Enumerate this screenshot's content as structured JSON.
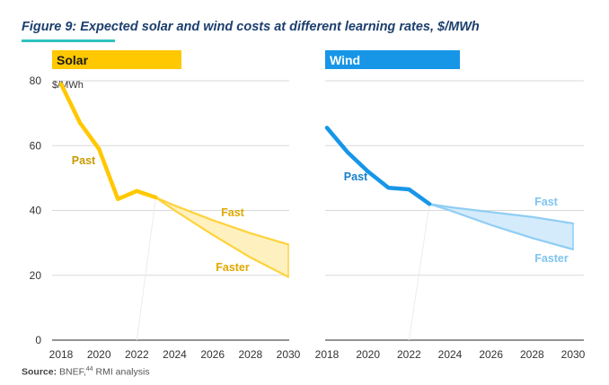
{
  "figure": {
    "title": "Figure 9: Expected solar and wind costs at different learning rates, $/MWh",
    "source_label": "Source:",
    "source_text": "BNEF,",
    "source_ref": "44",
    "source_tail": " RMI analysis"
  },
  "chart_data": [
    {
      "type": "line",
      "panel": "Solar",
      "ylabel": "$/MWh",
      "ylim": [
        0,
        80
      ],
      "yticks": [
        "0",
        "20",
        "40",
        "60",
        "80"
      ],
      "xticks": [
        "2018",
        "2020",
        "2022",
        "2024",
        "2026",
        "2028",
        "2030"
      ],
      "xlim": [
        2018,
        2030
      ],
      "grid": true,
      "colors": {
        "header": "#ffc800",
        "past": "#ffc800",
        "projection": "#ffd23a",
        "band": "#fff1bf",
        "label": "#e0a800"
      },
      "series": [
        {
          "name": "Past",
          "x": [
            2018,
            2019,
            2020,
            2021,
            2022,
            2023
          ],
          "y": [
            79,
            67,
            59,
            43.5,
            46,
            44
          ]
        },
        {
          "name": "Fast",
          "x": [
            2023,
            2024,
            2026,
            2028,
            2030
          ],
          "y": [
            44,
            41.5,
            37,
            33,
            29.5
          ]
        },
        {
          "name": "Faster",
          "x": [
            2023,
            2024,
            2026,
            2028,
            2030
          ],
          "y": [
            44,
            40,
            32.5,
            25.5,
            19.5
          ]
        }
      ]
    },
    {
      "type": "line",
      "panel": "Wind",
      "ylim": [
        0,
        80
      ],
      "xticks": [
        "2018",
        "2020",
        "2022",
        "2024",
        "2026",
        "2028",
        "2030"
      ],
      "xlim": [
        2018,
        2030
      ],
      "grid": true,
      "colors": {
        "header": "#1796e8",
        "past": "#1796e8",
        "projection": "#8fcdf4",
        "band": "#d4ebfb",
        "label": "#7fc4ef"
      },
      "series": [
        {
          "name": "Past",
          "x": [
            2018,
            2019,
            2020,
            2021,
            2022,
            2023
          ],
          "y": [
            65.5,
            58,
            52,
            47,
            46.5,
            42
          ]
        },
        {
          "name": "Fast",
          "x": [
            2023,
            2024,
            2026,
            2028,
            2030
          ],
          "y": [
            42,
            41,
            39.5,
            38,
            36
          ]
        },
        {
          "name": "Faster",
          "x": [
            2023,
            2024,
            2026,
            2028,
            2030
          ],
          "y": [
            42,
            40,
            35.5,
            31.5,
            28
          ]
        }
      ]
    }
  ]
}
